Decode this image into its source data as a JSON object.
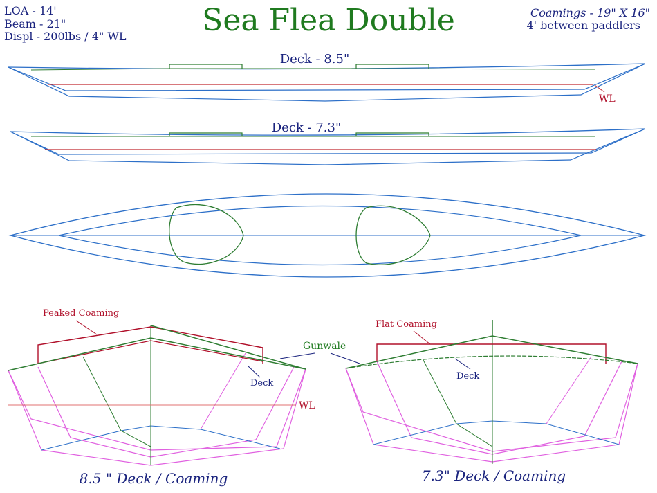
{
  "specs": {
    "loa": "LOA - 14'",
    "beam": "Beam - 21\"",
    "displ": "Displ - 200lbs / 4\" WL"
  },
  "title": "Sea Flea Double",
  "coamings": {
    "size": "Coamings - 19\" X 16\"",
    "spacing": "4' between paddlers"
  },
  "profile_views": [
    {
      "label": "Deck - 8.5\"",
      "wl_label": "WL"
    },
    {
      "label": "Deck - 7.3\""
    }
  ],
  "sections": {
    "left": {
      "coaming_label": "Peaked Coaming",
      "deck_label": "Deck",
      "wl_label": "WL",
      "caption": "8.5 \" Deck / Coaming"
    },
    "gunwale_label": "Gunwale",
    "right": {
      "coaming_label": "Flat Coaming",
      "deck_label": "Deck",
      "caption": "7.3\" Deck / Coaming"
    }
  },
  "colors": {
    "hull": "#2c6fc8",
    "waterline": "#c0282f",
    "coaming": "#2e7d32",
    "frames": "#e060e0",
    "title": "#1f7a1f",
    "text": "#1a237e"
  }
}
